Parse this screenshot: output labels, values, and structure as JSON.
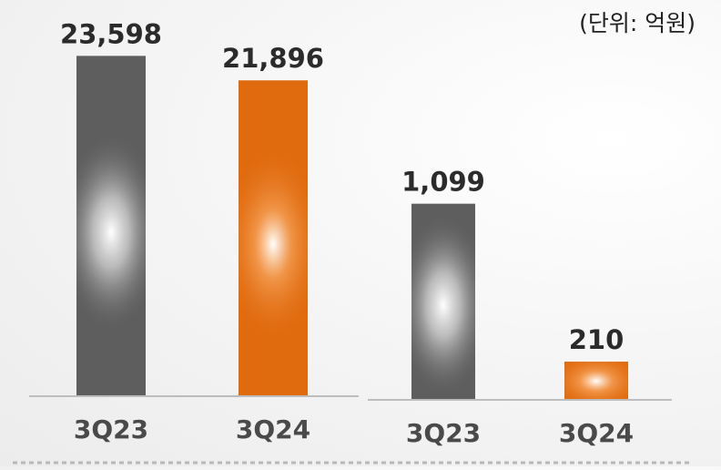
{
  "unit_label": "(단위: 억원)",
  "colors": {
    "prior_period": "#5e5e5e",
    "current_period": "#e06a0e",
    "baseline": "#bdbdbd",
    "dotted_line": "#b8b8b8",
    "label_text": "#2b2b2b",
    "category_text": "#4a4a4a"
  },
  "chart_data": [
    {
      "type": "bar",
      "categories": [
        "3Q23",
        "3Q24"
      ],
      "values": [
        23598,
        21896
      ],
      "value_labels": [
        "23,598",
        "21,896"
      ],
      "bar_colors": [
        "prior_period",
        "current_period"
      ],
      "ylim": [
        0,
        25900
      ]
    },
    {
      "type": "bar",
      "categories": [
        "3Q23",
        "3Q24"
      ],
      "values": [
        1099,
        210
      ],
      "value_labels": [
        "1,099",
        "210"
      ],
      "bar_colors": [
        "prior_period",
        "current_period"
      ],
      "ylim": [
        0,
        1451
      ]
    }
  ]
}
